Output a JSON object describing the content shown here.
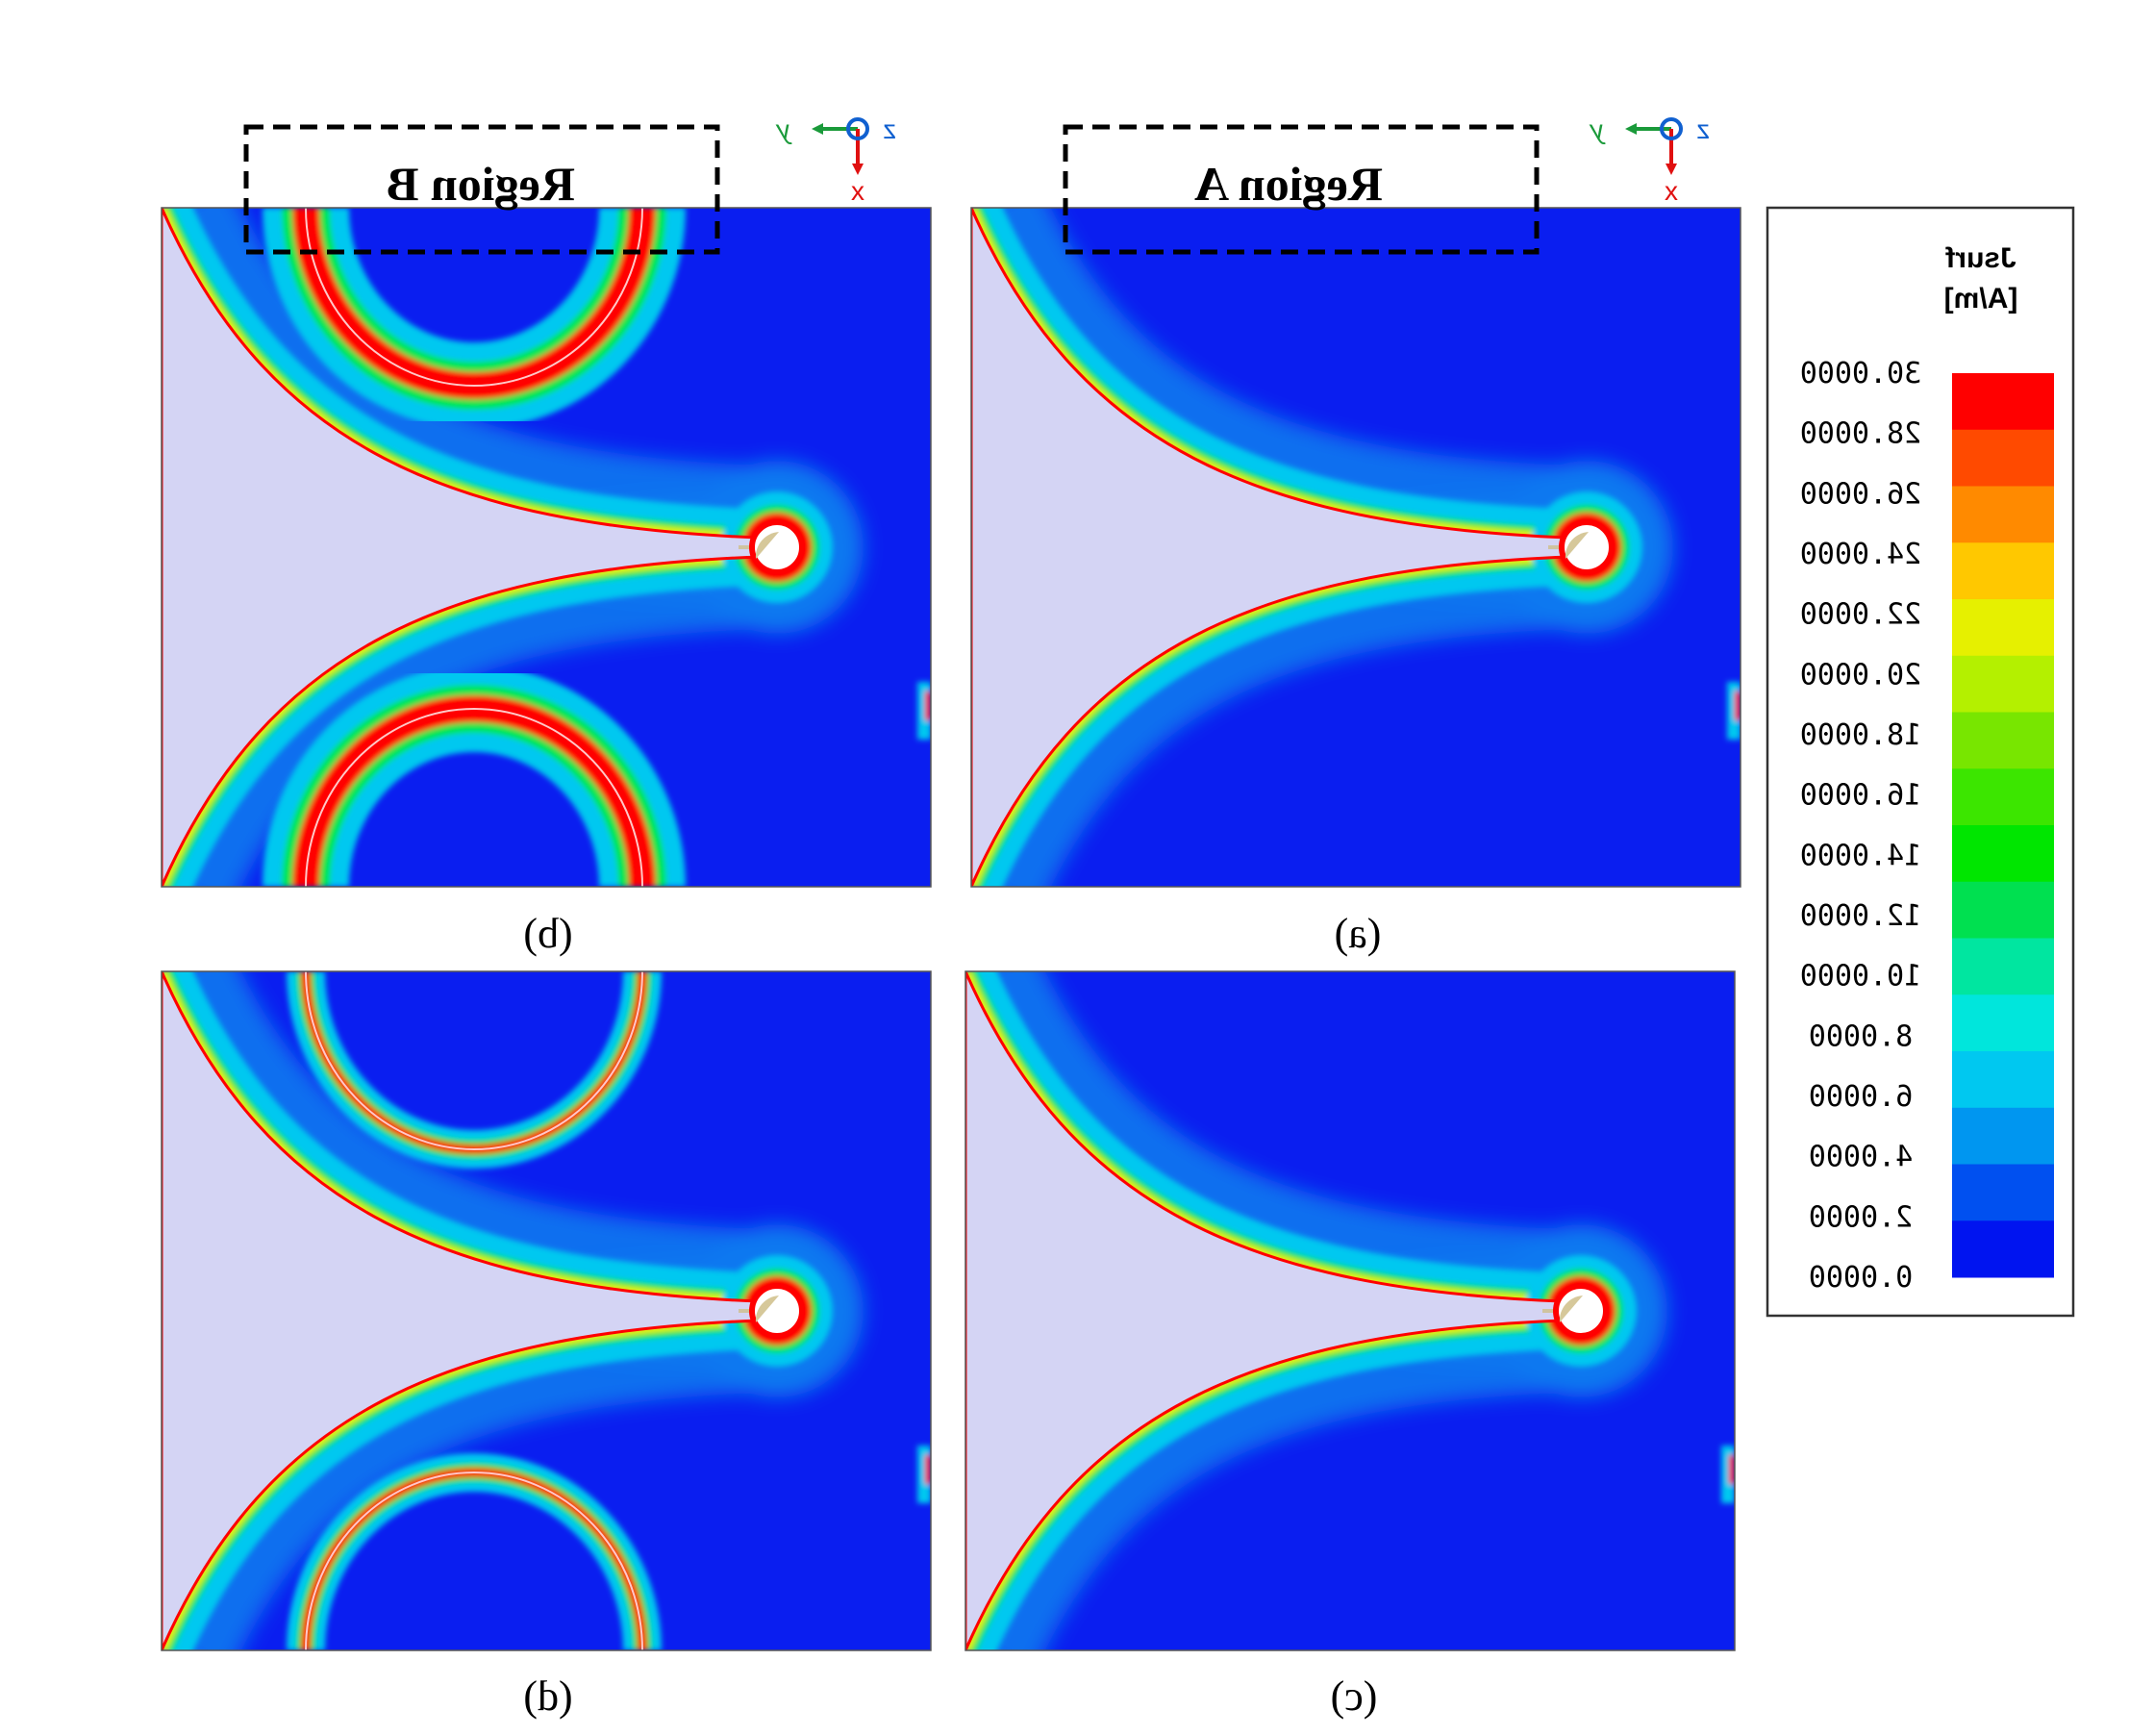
{
  "panels": [
    {
      "id": "a",
      "caption": "(a)",
      "region_label": "Region A",
      "rings": false
    },
    {
      "id": "b",
      "caption": "(b)",
      "region_label": "Region B",
      "rings": true
    },
    {
      "id": "c",
      "caption": "(c)",
      "region_label": "",
      "rings": false
    },
    {
      "id": "d",
      "caption": "(d)",
      "region_label": "",
      "rings": true
    }
  ],
  "axes_triad": {
    "z": "z",
    "y": "y",
    "x": "x"
  },
  "legend": {
    "title": "Jsurf",
    "unit": "[A/m]",
    "ticks": [
      "30.0000",
      "28.0000",
      "26.0000",
      "24.0000",
      "22.0000",
      "20.0000",
      "18.0000",
      "16.0000",
      "14.0000",
      "12.0000",
      "10.0000",
      "8.0000",
      "6.0000",
      "4.0000",
      "2.0000",
      "0.0000"
    ],
    "colors": [
      "#ff0000",
      "#ff4a00",
      "#ff8a00",
      "#ffc800",
      "#e6f000",
      "#b4f000",
      "#78e600",
      "#3ce600",
      "#00e600",
      "#00e050",
      "#00e6a0",
      "#00e6dc",
      "#00c8f0",
      "#0096f0",
      "#0050f0",
      "#0014f0"
    ]
  },
  "colors": {
    "field_base": "#0a1ef0",
    "field_mid": "#0a78f0",
    "field_light": "#00c8f0",
    "field_cyan": "#00e6dc",
    "field_green": "#00e650",
    "field_yellow": "#e6f000",
    "field_red": "#ff0000",
    "pec_region": "#d4d4f4",
    "annotation": "#000000"
  }
}
